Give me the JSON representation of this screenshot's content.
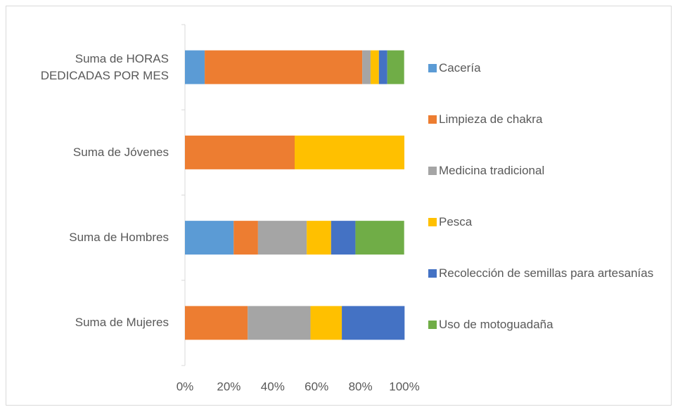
{
  "chart_data": {
    "type": "stacked_barh",
    "categories": [
      "Suma de HORAS DEDICADAS POR MES",
      "Suma de Jóvenes",
      "Suma de Hombres",
      "Suma de Mujeres"
    ],
    "series": [
      {
        "name": "Cacería",
        "color": "#5b9bd5",
        "values": [
          9,
          0,
          22.2,
          0
        ]
      },
      {
        "name": "Limpieza de chakra",
        "color": "#ed7d31",
        "values": [
          71.8,
          50,
          11.1,
          28.6
        ]
      },
      {
        "name": "Medicina tradicional",
        "color": "#a5a5a5",
        "values": [
          3.8,
          0,
          22.2,
          28.6
        ]
      },
      {
        "name": "Pesca",
        "color": "#ffc000",
        "values": [
          3.8,
          50,
          11.1,
          14.3
        ]
      },
      {
        "name": "Recolección de semillas para artesanías",
        "color": "#4472c4",
        "values": [
          3.8,
          0,
          11.1,
          28.6
        ]
      },
      {
        "name": "Uso de motoguadaña",
        "color": "#70ad47",
        "values": [
          7.7,
          0,
          22.2,
          0
        ]
      }
    ],
    "xlim": [
      0,
      100
    ],
    "xticks": [
      {
        "value": 0,
        "label": "0%"
      },
      {
        "value": 20,
        "label": "20%"
      },
      {
        "value": 40,
        "label": "40%"
      },
      {
        "value": 60,
        "label": "60%"
      },
      {
        "value": 80,
        "label": "80%"
      },
      {
        "value": 100,
        "label": "100%"
      }
    ],
    "legend": "right"
  }
}
